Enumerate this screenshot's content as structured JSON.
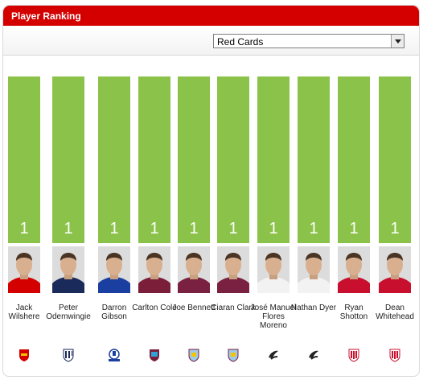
{
  "header": {
    "title": "Player Ranking"
  },
  "filter": {
    "selected": "Red Cards"
  },
  "colors": {
    "bar": "#8bc34a",
    "header": "#d40000"
  },
  "players": [
    {
      "name": "Jack Wilshere",
      "count": "1",
      "club_icon": "arsenal-crest-icon",
      "kit": "#d40000"
    },
    {
      "name": "Peter Odemwingie",
      "count": "1",
      "club_icon": "west-brom-crest-icon",
      "kit": "#1a2a5a"
    },
    {
      "name": "Darron Gibson",
      "count": "1",
      "club_icon": "everton-crest-icon",
      "kit": "#1a3fa0"
    },
    {
      "name": "Carlton Cole",
      "count": "1",
      "club_icon": "west-ham-crest-icon",
      "kit": "#7a1e3a"
    },
    {
      "name": "Joe Bennett",
      "count": "1",
      "club_icon": "aston-villa-crest-icon",
      "kit": "#7a2040"
    },
    {
      "name": "Ciaran Clark",
      "count": "1",
      "club_icon": "aston-villa-crest-icon",
      "kit": "#7a2040"
    },
    {
      "name": "José Manuel Flores Moreno",
      "count": "1",
      "club_icon": "swansea-crest-icon",
      "kit": "#f2f2f2"
    },
    {
      "name": "Nathan Dyer",
      "count": "1",
      "club_icon": "swansea-crest-icon",
      "kit": "#f2f2f2"
    },
    {
      "name": "Ryan Shotton",
      "count": "1",
      "club_icon": "stoke-crest-icon",
      "kit": "#c8102e"
    },
    {
      "name": "Dean Whitehead",
      "count": "1",
      "club_icon": "stoke-crest-icon",
      "kit": "#c8102e"
    }
  ]
}
